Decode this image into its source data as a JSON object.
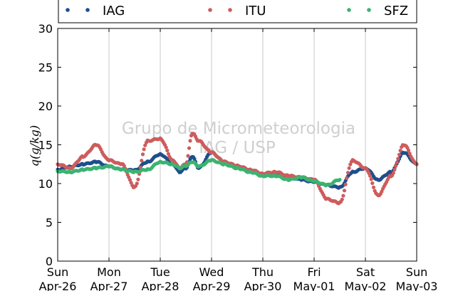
{
  "chart_data": {
    "type": "scatter",
    "title": "",
    "ylabel": "q(g/kg)",
    "xlabel": "",
    "ylim": [
      0,
      30
    ],
    "yticks": [
      0,
      5,
      10,
      15,
      20,
      25,
      30
    ],
    "xlim": [
      "Apr-26",
      "May-03"
    ],
    "xticks": [
      {
        "day": "Sun",
        "date": "Apr-26"
      },
      {
        "day": "Mon",
        "date": "Apr-27"
      },
      {
        "day": "Tue",
        "date": "Apr-28"
      },
      {
        "day": "Wed",
        "date": "Apr-29"
      },
      {
        "day": "Thu",
        "date": "Apr-30"
      },
      {
        "day": "Fri",
        "date": "May-01"
      },
      {
        "day": "Sat",
        "date": "May-02"
      },
      {
        "day": "Sun",
        "date": "May-03"
      }
    ],
    "grid": "vertical",
    "legend_position": "top",
    "watermark": [
      "Grupo de Micrometeorologia",
      "IAG / USP"
    ],
    "series": [
      {
        "name": "IAG",
        "color": "#1f4e8c",
        "x": [
          "Apr-26 00:00",
          "Apr-26 06:00",
          "Apr-26 12:00",
          "Apr-26 18:00",
          "Apr-27 00:00",
          "Apr-27 06:00",
          "Apr-27 12:00",
          "Apr-27 18:00",
          "Apr-28 00:00",
          "Apr-28 06:00",
          "Apr-28 09:00",
          "Apr-28 12:00",
          "Apr-28 15:00",
          "Apr-28 18:00",
          "Apr-29 00:00",
          "Apr-29 06:00",
          "Apr-29 12:00",
          "Apr-29 18:00",
          "Apr-30 00:00",
          "Apr-30 06:00",
          "Apr-30 12:00",
          "Apr-30 18:00",
          "May-01 00:00",
          "May-01 06:00",
          "May-01 12:00",
          "May-01 18:00",
          "May-02 00:00",
          "May-02 06:00",
          "May-02 12:00",
          "May-02 18:00",
          "May-03 00:00"
        ],
        "y": [
          11.8,
          12.2,
          12.5,
          12.8,
          12.2,
          11.8,
          11.7,
          12.8,
          13.8,
          12.5,
          11.5,
          12.0,
          13.5,
          12.0,
          14.0,
          12.8,
          12.2,
          11.8,
          11.2,
          11.3,
          11.0,
          10.5,
          10.2,
          9.8,
          9.5,
          11.5,
          12.0,
          10.5,
          11.5,
          14.0,
          12.5
        ]
      },
      {
        "name": "ITU",
        "color": "#cd5c5c",
        "x": [
          "Apr-26 00:00",
          "Apr-26 06:00",
          "Apr-26 12:00",
          "Apr-26 18:00",
          "Apr-27 00:00",
          "Apr-27 06:00",
          "Apr-27 12:00",
          "Apr-27 18:00",
          "Apr-28 00:00",
          "Apr-28 06:00",
          "Apr-28 09:00",
          "Apr-28 12:00",
          "Apr-28 15:00",
          "Apr-28 18:00",
          "Apr-29 00:00",
          "Apr-29 06:00",
          "Apr-29 12:00",
          "Apr-29 18:00",
          "Apr-30 00:00",
          "Apr-30 06:00",
          "Apr-30 12:00",
          "Apr-30 18:00",
          "May-01 00:00",
          "May-01 06:00",
          "May-01 12:00",
          "May-01 18:00",
          "May-02 00:00",
          "May-02 06:00",
          "May-02 12:00",
          "May-02 18:00",
          "May-03 00:00"
        ],
        "y": [
          12.5,
          12.0,
          13.5,
          15.0,
          13.0,
          12.5,
          9.5,
          15.5,
          15.8,
          13.0,
          12.0,
          12.5,
          16.5,
          15.5,
          14.0,
          12.8,
          12.3,
          11.8,
          11.3,
          11.5,
          11.0,
          10.8,
          10.5,
          8.0,
          7.5,
          13.0,
          12.0,
          8.5,
          11.0,
          15.0,
          12.5
        ]
      },
      {
        "name": "SFZ",
        "color": "#3cb371",
        "x": [
          "Apr-26 00:00",
          "Apr-26 06:00",
          "Apr-26 12:00",
          "Apr-26 18:00",
          "Apr-27 00:00",
          "Apr-27 06:00",
          "Apr-27 12:00",
          "Apr-27 18:00",
          "Apr-28 00:00",
          "Apr-28 06:00",
          "Apr-28 09:00",
          "Apr-28 12:00",
          "Apr-28 15:00",
          "Apr-28 18:00",
          "Apr-29 00:00",
          "Apr-29 06:00",
          "Apr-29 12:00",
          "Apr-29 18:00",
          "Apr-30 00:00",
          "Apr-30 06:00",
          "Apr-30 12:00",
          "Apr-30 18:00",
          "May-01 00:00",
          "May-01 06:00",
          "May-01 12:00"
        ],
        "y": [
          11.6,
          11.5,
          11.8,
          12.0,
          12.2,
          11.8,
          11.5,
          11.8,
          12.8,
          12.5,
          12.0,
          12.3,
          12.8,
          12.2,
          13.0,
          12.5,
          12.0,
          11.5,
          11.0,
          11.0,
          10.5,
          10.8,
          10.3,
          9.8,
          10.5
        ]
      }
    ]
  }
}
